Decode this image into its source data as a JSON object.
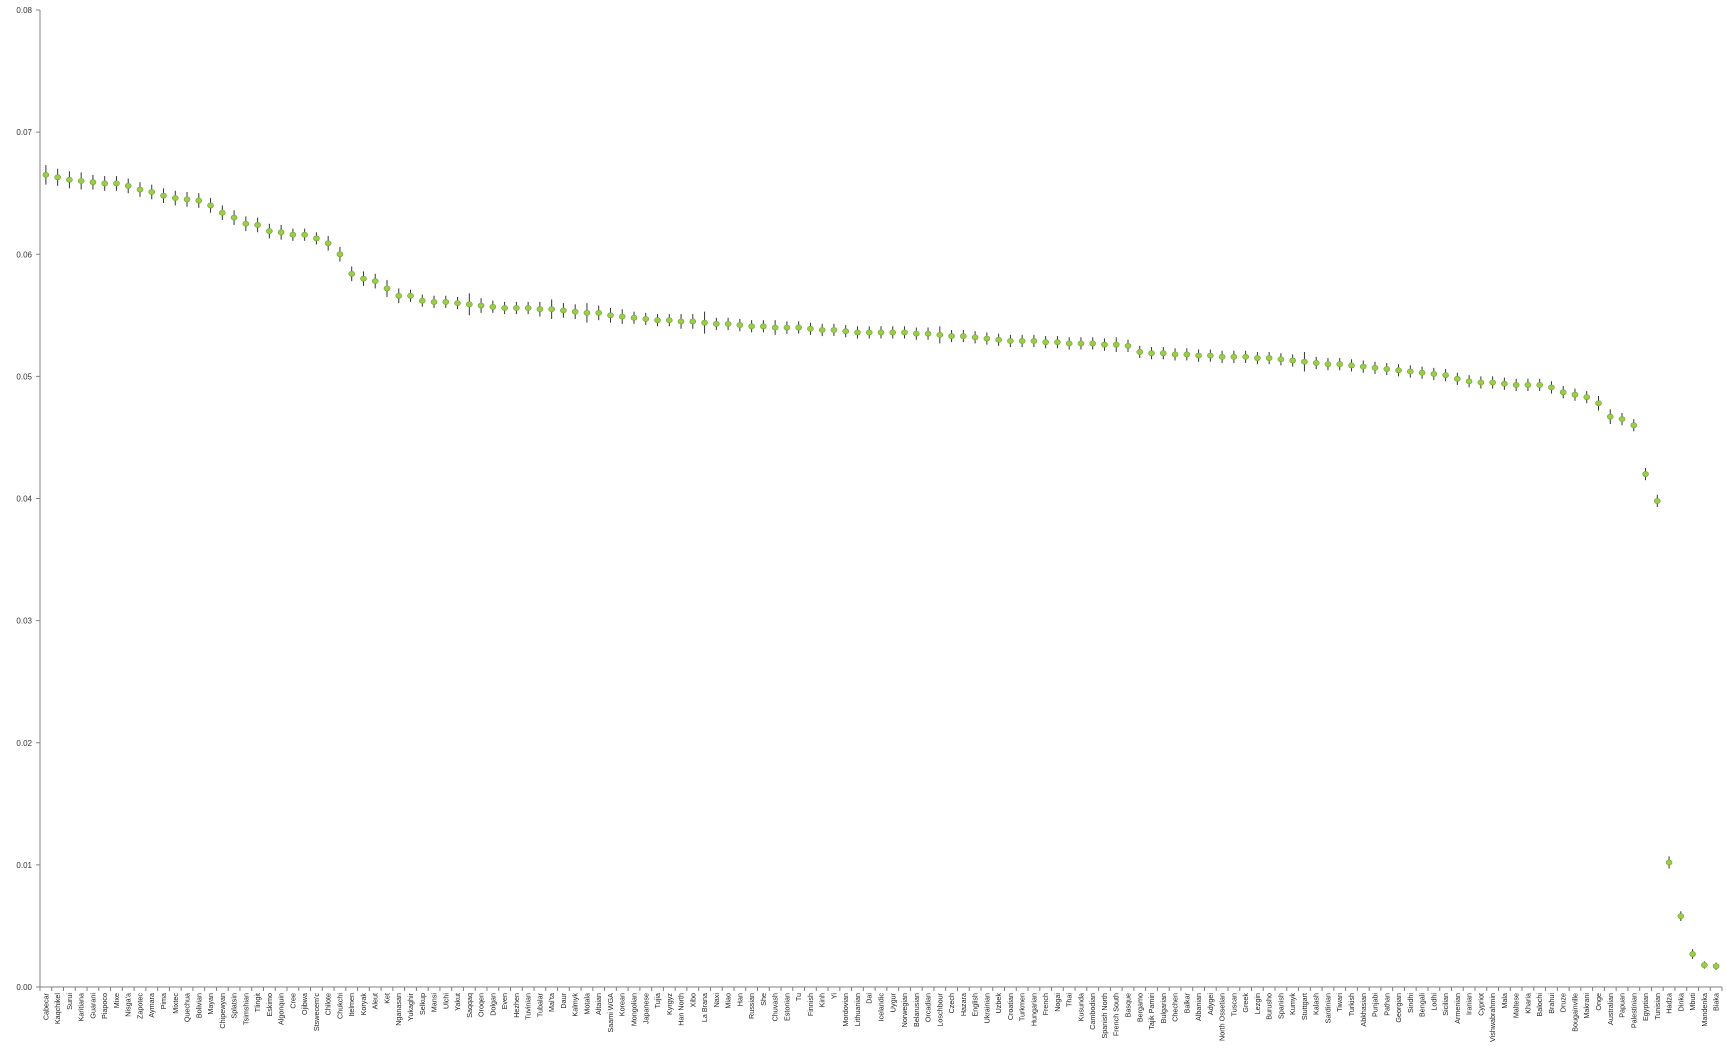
{
  "chart_data": {
    "type": "scatter",
    "title": "",
    "xlabel": "",
    "ylabel": "",
    "ylim": [
      0,
      0.08
    ],
    "y_ticks": [
      "0.00",
      "0.01",
      "0.02",
      "0.03",
      "0.04",
      "0.05",
      "0.06",
      "0.07",
      "0.08"
    ],
    "grid": false,
    "legend": "none",
    "colors": {
      "point": "#9acd4a",
      "point_edge": "#6fa22c",
      "error_bar": "#333333",
      "axis": "#808080"
    },
    "categories": [
      "Cabecar",
      "Kaqchikel",
      "Surui",
      "Karitiana",
      "Guarani",
      "Piapoco",
      "Mixe",
      "Nisga'a",
      "Zapotec",
      "Aymara",
      "Pima",
      "Mixtec",
      "Quechua",
      "Bolivian",
      "Mayan",
      "Chipewyan",
      "Splatsin",
      "Tsimshian",
      "Tlingit",
      "Eskimo",
      "Algonquin",
      "Cree",
      "Ojibwa",
      "Stswecem'c",
      "Chilote",
      "Chukchi",
      "Itelmen",
      "Koryak",
      "Aleut",
      "Ket",
      "Nganasan",
      "Yukaghir",
      "Selkup",
      "Mansi",
      "Ulchi",
      "Yakut",
      "Saqqaq",
      "Oroqen",
      "Dolgan",
      "Even",
      "Hezhen",
      "Tuvinian",
      "Tubalar",
      "Mal'ta",
      "Daur",
      "Kalmyk",
      "Motala",
      "Altaian",
      "Saami WGA",
      "Korean",
      "Mongolian",
      "Japanese",
      "Tujia",
      "Kyrgyz",
      "Han North",
      "Xibo",
      "La Brana",
      "Naxi",
      "Miao",
      "Han",
      "Russian",
      "She",
      "Chuvash",
      "Estonian",
      "Tu",
      "Finnish",
      "Kinh",
      "Yi",
      "Mordovian",
      "Lithuanian",
      "Dai",
      "Icelandic",
      "Uygur",
      "Norwegian",
      "Belarusian",
      "Orcadian",
      "Loschbour",
      "Czech",
      "Hazara",
      "English",
      "Ukrainian",
      "Uzbek",
      "Croatian",
      "Turkmen",
      "Hungarian",
      "French",
      "Nogai",
      "Thai",
      "Kusunda",
      "Cambodian",
      "Spanish North",
      "French South",
      "Basque",
      "Bergamo",
      "Tajik Pamiri",
      "Bulgarian",
      "Chechen",
      "Balkar",
      "Albanian",
      "Adygei",
      "North Ossetian",
      "Tuscan",
      "Greek",
      "Lezgin",
      "Burusho",
      "Spanish",
      "Kumyk",
      "Stuttgart",
      "Kalash",
      "Sardinian",
      "Tiwari",
      "Turkish",
      "Abkhasian",
      "Punjabi",
      "Pathan",
      "Georgian",
      "Sindhi",
      "Bengali",
      "Lodhi",
      "Sicilian",
      "Armenian",
      "Iranian",
      "Cypriot",
      "Vishwabrahmin",
      "Mala",
      "Maltese",
      "Kharia",
      "Balochi",
      "Brahui",
      "Druze",
      "Bougainville",
      "Makrani",
      "Onge",
      "Australian",
      "Papuan",
      "Palestinian",
      "Egyptian",
      "Tunisian",
      "Hadza",
      "Dinka",
      "Mbuti",
      "Mandenka",
      "Biaka"
    ],
    "values": [
      0.0665,
      0.0663,
      0.0661,
      0.066,
      0.0659,
      0.0658,
      0.0658,
      0.0656,
      0.0653,
      0.0651,
      0.0648,
      0.0646,
      0.0645,
      0.0644,
      0.064,
      0.0634,
      0.063,
      0.0625,
      0.0624,
      0.0619,
      0.0618,
      0.0616,
      0.0616,
      0.0613,
      0.0609,
      0.06,
      0.0584,
      0.058,
      0.0578,
      0.0572,
      0.0566,
      0.0566,
      0.0562,
      0.0561,
      0.0561,
      0.056,
      0.0559,
      0.0558,
      0.0557,
      0.0556,
      0.0556,
      0.0556,
      0.0555,
      0.0555,
      0.0554,
      0.0553,
      0.0552,
      0.0552,
      0.055,
      0.0549,
      0.0548,
      0.0547,
      0.0546,
      0.0546,
      0.0545,
      0.0545,
      0.0544,
      0.0543,
      0.0543,
      0.0542,
      0.0541,
      0.0541,
      0.054,
      0.054,
      0.054,
      0.0539,
      0.0538,
      0.0538,
      0.0537,
      0.0536,
      0.0536,
      0.0536,
      0.0536,
      0.0536,
      0.0535,
      0.0535,
      0.0534,
      0.0533,
      0.0533,
      0.0532,
      0.0531,
      0.053,
      0.0529,
      0.0529,
      0.0529,
      0.0528,
      0.0528,
      0.0527,
      0.0527,
      0.0527,
      0.0526,
      0.0526,
      0.0525,
      0.052,
      0.0519,
      0.0519,
      0.0518,
      0.0518,
      0.0517,
      0.0517,
      0.0516,
      0.0516,
      0.0516,
      0.0515,
      0.0515,
      0.0514,
      0.0513,
      0.0512,
      0.0511,
      0.051,
      0.051,
      0.0509,
      0.0508,
      0.0507,
      0.0506,
      0.0505,
      0.0504,
      0.0503,
      0.0502,
      0.0501,
      0.0498,
      0.0496,
      0.0495,
      0.0495,
      0.0494,
      0.0493,
      0.0493,
      0.0493,
      0.0491,
      0.0487,
      0.0485,
      0.0483,
      0.0478,
      0.0467,
      0.0465,
      0.046,
      0.042,
      0.0398,
      0.0102,
      0.0058,
      0.0027,
      0.0018,
      0.0017
    ],
    "errors": [
      0.0008,
      0.0007,
      0.0007,
      0.0007,
      0.0006,
      0.0006,
      0.0006,
      0.0006,
      0.0006,
      0.0006,
      0.0006,
      0.0006,
      0.0006,
      0.0006,
      0.0006,
      0.0006,
      0.0006,
      0.0006,
      0.0006,
      0.0006,
      0.0006,
      0.0005,
      0.0005,
      0.0005,
      0.0006,
      0.0006,
      0.0006,
      0.0006,
      0.0006,
      0.0007,
      0.0006,
      0.0005,
      0.0005,
      0.0005,
      0.0005,
      0.0005,
      0.0009,
      0.0006,
      0.0005,
      0.0005,
      0.0005,
      0.0005,
      0.0006,
      0.0008,
      0.0006,
      0.0006,
      0.0008,
      0.0006,
      0.0006,
      0.0006,
      0.0005,
      0.0005,
      0.0005,
      0.0005,
      0.0006,
      0.0006,
      0.0009,
      0.0005,
      0.0005,
      0.0005,
      0.0005,
      0.0005,
      0.0006,
      0.0005,
      0.0005,
      0.0005,
      0.0005,
      0.0005,
      0.0005,
      0.0005,
      0.0005,
      0.0005,
      0.0005,
      0.0005,
      0.0005,
      0.0005,
      0.0007,
      0.0005,
      0.0005,
      0.0005,
      0.0005,
      0.0005,
      0.0005,
      0.0005,
      0.0005,
      0.0005,
      0.0005,
      0.0005,
      0.0005,
      0.0005,
      0.0005,
      0.0006,
      0.0005,
      0.0005,
      0.0005,
      0.0005,
      0.0005,
      0.0005,
      0.0005,
      0.0005,
      0.0005,
      0.0005,
      0.0005,
      0.0005,
      0.0005,
      0.0005,
      0.0005,
      0.0008,
      0.0005,
      0.0005,
      0.0005,
      0.0005,
      0.0005,
      0.0005,
      0.0005,
      0.0005,
      0.0005,
      0.0005,
      0.0005,
      0.0005,
      0.0005,
      0.0005,
      0.0005,
      0.0005,
      0.0005,
      0.0005,
      0.0005,
      0.0005,
      0.0005,
      0.0005,
      0.0005,
      0.0005,
      0.0006,
      0.0006,
      0.0005,
      0.0005,
      0.0005,
      0.0005,
      0.0005,
      0.0004,
      0.0004,
      0.0003,
      0.0003
    ]
  }
}
